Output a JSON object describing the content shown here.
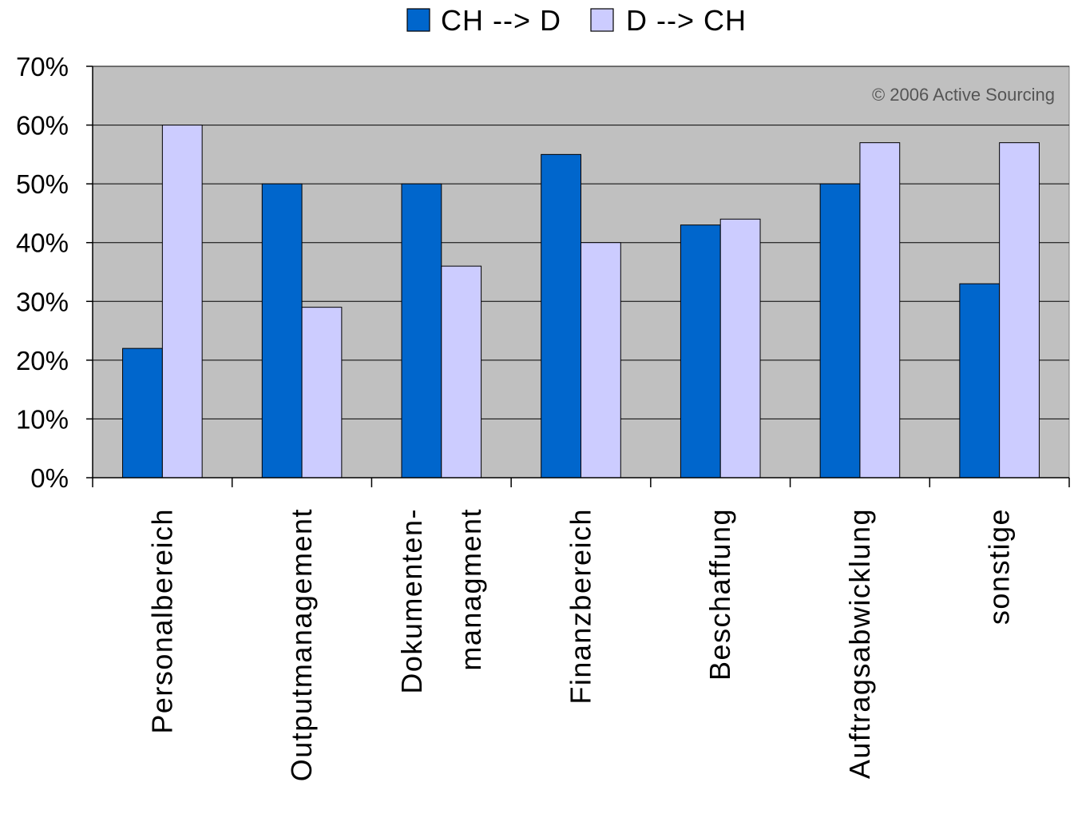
{
  "chart_data": {
    "type": "bar",
    "categories": [
      "Personalbereich",
      "Outputmanagement",
      "Dokumenten-\nmanagment",
      "Finanzbereich",
      "Beschaffung",
      "Auftragsabwicklung",
      "sonstige"
    ],
    "series": [
      {
        "name": "CH --> D",
        "color": "#0066cc",
        "values": [
          22,
          50,
          50,
          55,
          43,
          50,
          33
        ]
      },
      {
        "name": "D --> CH",
        "color": "#ccccff",
        "values": [
          60,
          29,
          36,
          40,
          44,
          57,
          57
        ]
      }
    ],
    "ylim": [
      0,
      70
    ],
    "yticks": [
      0,
      10,
      20,
      30,
      40,
      50,
      60,
      70
    ],
    "ytick_labels": [
      "0%",
      "10%",
      "20%",
      "30%",
      "40%",
      "50%",
      "60%",
      "70%"
    ],
    "title": "",
    "xlabel": "",
    "ylabel": "",
    "grid": true,
    "legend_position": "top-center",
    "plot_background": "#c0c0c0",
    "annotation": "© 2006 Active Sourcing"
  }
}
